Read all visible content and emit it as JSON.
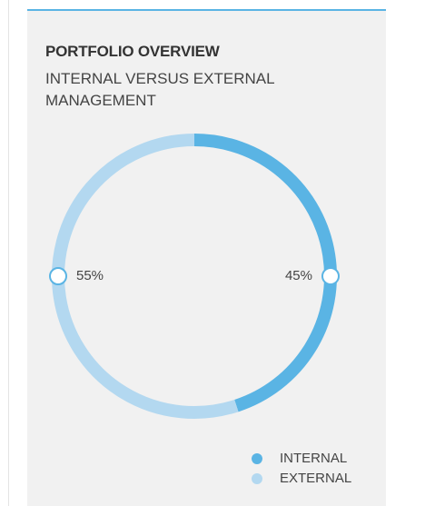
{
  "chart_data": {
    "type": "donut",
    "title": "PORTFOLIO OVERVIEW",
    "subtitle": "INTERNAL VERSUS EXTERNAL MANAGEMENT",
    "categories": [
      "INTERNAL",
      "EXTERNAL"
    ],
    "values": [
      45,
      55
    ],
    "value_labels": [
      "45%",
      "55%"
    ],
    "colors": [
      "#5ab4e4",
      "#b3d8f0"
    ],
    "legend": "bottom-right"
  }
}
